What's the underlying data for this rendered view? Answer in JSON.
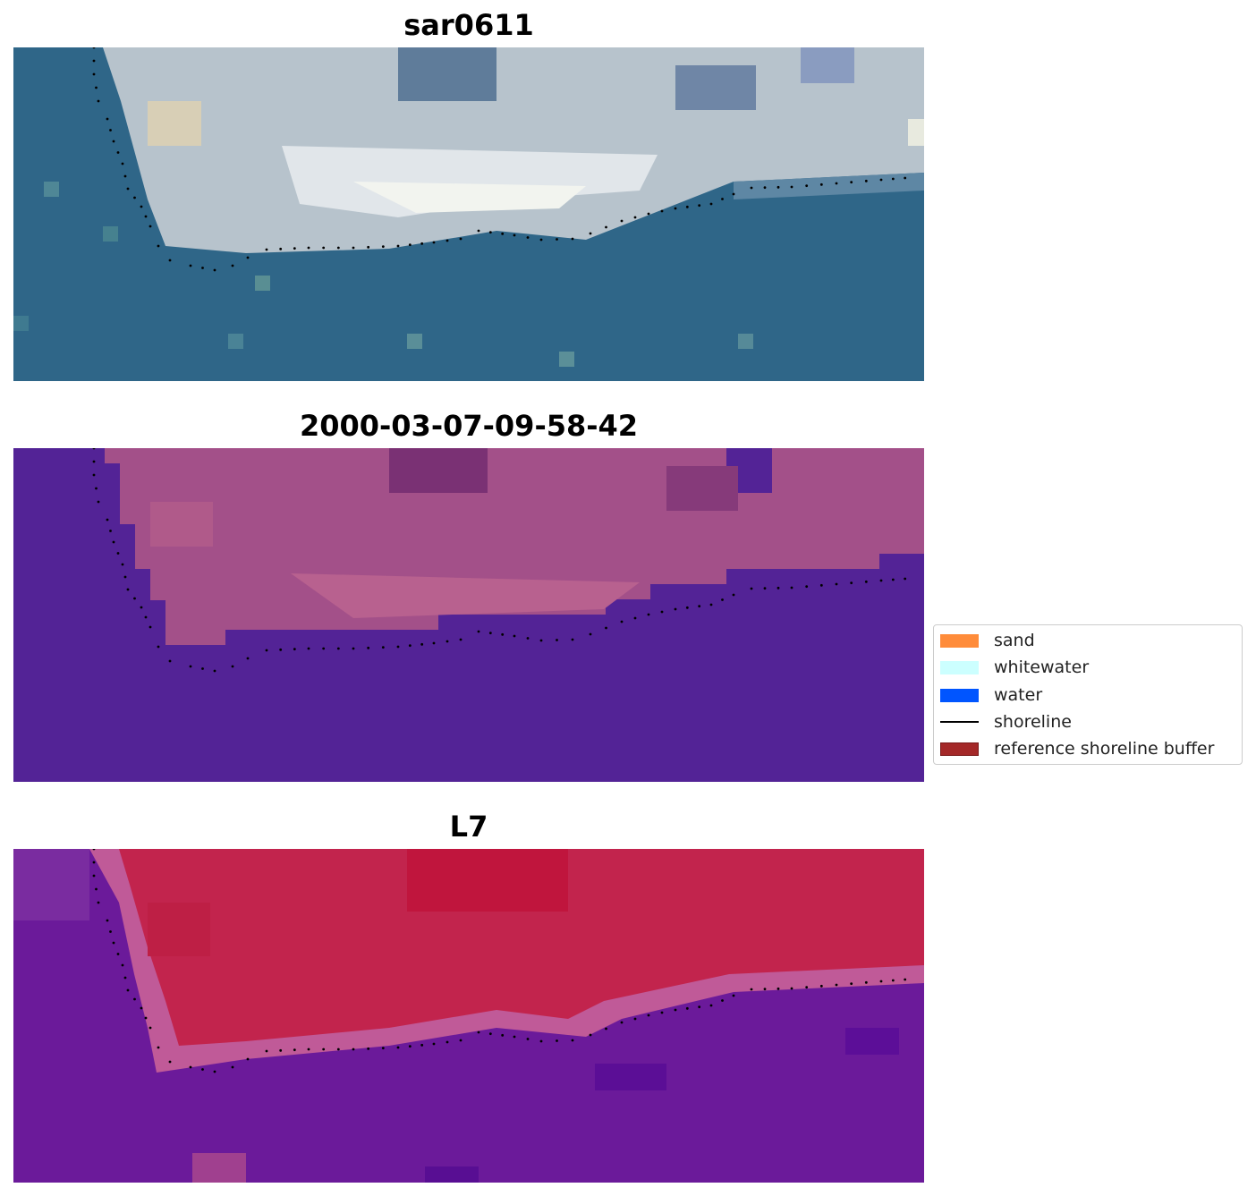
{
  "panels": [
    {
      "id": "rgb",
      "title": "sar0611"
    },
    {
      "id": "classified",
      "title": "2000-03-07-09-58-42"
    },
    {
      "id": "index",
      "title": "L7"
    }
  ],
  "legend": {
    "items": [
      {
        "label": "sand",
        "color": "#ff8c3a",
        "kind": "patch"
      },
      {
        "label": "whitewater",
        "color": "#ccffff",
        "kind": "patch"
      },
      {
        "label": "water",
        "color": "#0055ff",
        "kind": "patch"
      },
      {
        "label": "shoreline",
        "color": "#000000",
        "kind": "line"
      },
      {
        "label": "reference shoreline buffer",
        "color": "#a42828",
        "kind": "patch"
      }
    ]
  }
}
